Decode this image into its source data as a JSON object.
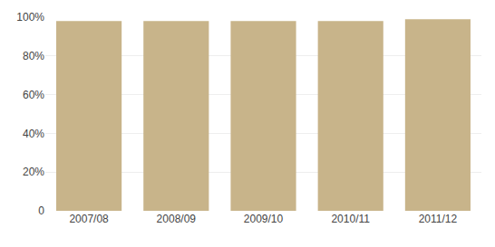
{
  "chart_data": {
    "type": "bar",
    "categories": [
      "2007/08",
      "2008/09",
      "2009/10",
      "2010/11",
      "2011/12"
    ],
    "values": [
      98,
      98,
      98,
      98,
      99
    ],
    "color": "#C8B48A",
    "ylim": [
      0,
      100
    ],
    "yticks": [
      0,
      {
        "value": 20,
        "label": "20%"
      },
      {
        "value": 40,
        "label": "40%"
      },
      {
        "value": 60,
        "label": "60%"
      },
      {
        "value": 80,
        "label": "80%"
      },
      {
        "value": 100,
        "label": "100%"
      }
    ],
    "grid": true
  }
}
